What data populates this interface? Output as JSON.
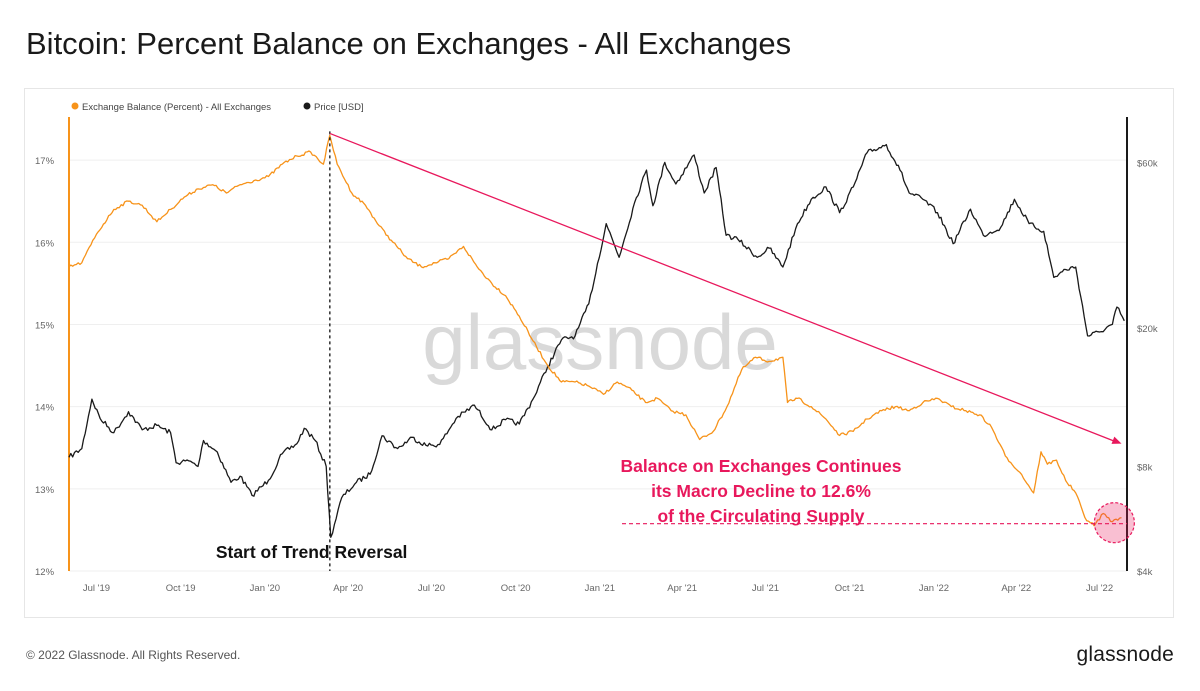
{
  "page": {
    "title": "Bitcoin: Percent Balance on Exchanges - All Exchanges"
  },
  "footer": {
    "copyright": "© 2022 Glassnode. All Rights Reserved.",
    "logo": "glassnode"
  },
  "watermark": "glassnode",
  "colors": {
    "balance": "#f7931a",
    "price": "#1a1a1a",
    "trend": "#e8185c",
    "annotation": "#e8185c"
  },
  "chart_data": {
    "type": "line",
    "title": "Bitcoin: Percent Balance on Exchanges - All Exchanges",
    "legend": {
      "placement": "top-left",
      "entries": [
        "Exchange Balance (Percent) - All Exchanges",
        "Price [USD]"
      ]
    },
    "x_ticks": [
      "Jul '19",
      "Oct '19",
      "Jan '20",
      "Apr '20",
      "Jul '20",
      "Oct '20",
      "Jan '21",
      "Apr '21",
      "Jul '21",
      "Oct '21",
      "Jan '22",
      "Apr '22",
      "Jul '22"
    ],
    "x_range": [
      "2019-06-01",
      "2022-07-31"
    ],
    "y_left": {
      "ticks": [
        "12%",
        "13%",
        "14%",
        "15%",
        "16%",
        "17%"
      ],
      "range": [
        12,
        17.5
      ],
      "unit": "percent"
    },
    "y_right": {
      "ticks": [
        "$4k",
        "$8k",
        "$20k",
        "$60k"
      ],
      "scale": "log",
      "range": [
        4000,
        80000
      ],
      "unit": "USD"
    },
    "grid": {
      "horizontal": true,
      "vertical": false
    },
    "series": [
      {
        "name": "Exchange Balance (Percent) - All Exchanges",
        "axis": "left",
        "points": [
          [
            "2019-06-01",
            15.7
          ],
          [
            "2019-06-15",
            15.75
          ],
          [
            "2019-07-01",
            16.1
          ],
          [
            "2019-07-20",
            16.4
          ],
          [
            "2019-08-05",
            16.5
          ],
          [
            "2019-08-20",
            16.45
          ],
          [
            "2019-09-05",
            16.25
          ],
          [
            "2019-09-20",
            16.4
          ],
          [
            "2019-10-05",
            16.55
          ],
          [
            "2019-10-20",
            16.65
          ],
          [
            "2019-11-05",
            16.7
          ],
          [
            "2019-11-20",
            16.6
          ],
          [
            "2019-12-05",
            16.7
          ],
          [
            "2019-12-20",
            16.75
          ],
          [
            "2020-01-05",
            16.8
          ],
          [
            "2020-01-20",
            16.95
          ],
          [
            "2020-02-05",
            17.05
          ],
          [
            "2020-02-20",
            17.1
          ],
          [
            "2020-03-05",
            16.95
          ],
          [
            "2020-03-12",
            17.3
          ],
          [
            "2020-03-20",
            16.95
          ],
          [
            "2020-04-05",
            16.6
          ],
          [
            "2020-04-20",
            16.45
          ],
          [
            "2020-05-05",
            16.2
          ],
          [
            "2020-05-20",
            16.0
          ],
          [
            "2020-06-05",
            15.8
          ],
          [
            "2020-06-20",
            15.7
          ],
          [
            "2020-07-05",
            15.75
          ],
          [
            "2020-07-20",
            15.8
          ],
          [
            "2020-08-05",
            15.95
          ],
          [
            "2020-08-20",
            15.7
          ],
          [
            "2020-09-05",
            15.5
          ],
          [
            "2020-09-20",
            15.35
          ],
          [
            "2020-10-05",
            15.1
          ],
          [
            "2020-10-20",
            14.8
          ],
          [
            "2020-11-05",
            14.5
          ],
          [
            "2020-11-20",
            14.3
          ],
          [
            "2020-12-05",
            14.3
          ],
          [
            "2020-12-20",
            14.25
          ],
          [
            "2021-01-05",
            14.15
          ],
          [
            "2021-01-20",
            14.3
          ],
          [
            "2021-02-05",
            14.2
          ],
          [
            "2021-02-20",
            14.05
          ],
          [
            "2021-03-05",
            14.1
          ],
          [
            "2021-03-20",
            13.95
          ],
          [
            "2021-04-05",
            13.9
          ],
          [
            "2021-04-20",
            13.6
          ],
          [
            "2021-05-05",
            13.7
          ],
          [
            "2021-05-20",
            14.0
          ],
          [
            "2021-06-05",
            14.45
          ],
          [
            "2021-06-20",
            14.6
          ],
          [
            "2021-07-05",
            14.55
          ],
          [
            "2021-07-20",
            14.6
          ],
          [
            "2021-07-25",
            14.05
          ],
          [
            "2021-08-05",
            14.1
          ],
          [
            "2021-08-20",
            14.0
          ],
          [
            "2021-09-05",
            13.85
          ],
          [
            "2021-09-20",
            13.65
          ],
          [
            "2021-10-05",
            13.7
          ],
          [
            "2021-10-20",
            13.85
          ],
          [
            "2021-11-05",
            13.95
          ],
          [
            "2021-11-20",
            14.0
          ],
          [
            "2021-12-05",
            13.95
          ],
          [
            "2021-12-20",
            14.05
          ],
          [
            "2022-01-05",
            14.1
          ],
          [
            "2022-01-20",
            14.0
          ],
          [
            "2022-02-05",
            13.95
          ],
          [
            "2022-02-20",
            13.9
          ],
          [
            "2022-03-05",
            13.75
          ],
          [
            "2022-03-20",
            13.4
          ],
          [
            "2022-04-05",
            13.2
          ],
          [
            "2022-04-20",
            12.95
          ],
          [
            "2022-04-28",
            13.45
          ],
          [
            "2022-05-05",
            13.3
          ],
          [
            "2022-05-15",
            13.35
          ],
          [
            "2022-05-25",
            13.1
          ],
          [
            "2022-06-05",
            12.95
          ],
          [
            "2022-06-15",
            12.65
          ],
          [
            "2022-06-25",
            12.55
          ],
          [
            "2022-07-05",
            12.7
          ],
          [
            "2022-07-15",
            12.6
          ],
          [
            "2022-07-25",
            12.65
          ]
        ]
      },
      {
        "name": "Price [USD]",
        "axis": "right",
        "points": [
          [
            "2019-06-01",
            8500
          ],
          [
            "2019-06-15",
            9000
          ],
          [
            "2019-06-26",
            12500
          ],
          [
            "2019-07-05",
            11000
          ],
          [
            "2019-07-20",
            10000
          ],
          [
            "2019-08-05",
            11500
          ],
          [
            "2019-08-20",
            10200
          ],
          [
            "2019-09-05",
            10500
          ],
          [
            "2019-09-20",
            10000
          ],
          [
            "2019-09-26",
            8200
          ],
          [
            "2019-10-10",
            8300
          ],
          [
            "2019-10-20",
            8000
          ],
          [
            "2019-10-26",
            9500
          ],
          [
            "2019-11-10",
            8800
          ],
          [
            "2019-11-25",
            7200
          ],
          [
            "2019-12-05",
            7500
          ],
          [
            "2019-12-18",
            6600
          ],
          [
            "2020-01-05",
            7300
          ],
          [
            "2020-01-20",
            8700
          ],
          [
            "2020-02-05",
            9300
          ],
          [
            "2020-02-13",
            10300
          ],
          [
            "2020-02-25",
            9500
          ],
          [
            "2020-03-08",
            8000
          ],
          [
            "2020-03-13",
            5000
          ],
          [
            "2020-03-25",
            6500
          ],
          [
            "2020-04-10",
            7200
          ],
          [
            "2020-04-25",
            7600
          ],
          [
            "2020-05-08",
            9800
          ],
          [
            "2020-05-25",
            9000
          ],
          [
            "2020-06-10",
            9700
          ],
          [
            "2020-06-25",
            9200
          ],
          [
            "2020-07-10",
            9250
          ],
          [
            "2020-07-28",
            11000
          ],
          [
            "2020-08-17",
            12000
          ],
          [
            "2020-09-05",
            10200
          ],
          [
            "2020-09-20",
            10900
          ],
          [
            "2020-10-05",
            10600
          ],
          [
            "2020-10-20",
            12500
          ],
          [
            "2020-11-05",
            15500
          ],
          [
            "2020-11-20",
            18500
          ],
          [
            "2020-12-05",
            19000
          ],
          [
            "2020-12-20",
            23500
          ],
          [
            "2021-01-08",
            40000
          ],
          [
            "2021-01-22",
            32000
          ],
          [
            "2021-02-08",
            46000
          ],
          [
            "2021-02-21",
            57000
          ],
          [
            "2021-02-28",
            45000
          ],
          [
            "2021-03-13",
            60000
          ],
          [
            "2021-03-25",
            52000
          ],
          [
            "2021-04-14",
            63000
          ],
          [
            "2021-04-25",
            49000
          ],
          [
            "2021-05-08",
            58000
          ],
          [
            "2021-05-19",
            37000
          ],
          [
            "2021-06-01",
            36000
          ],
          [
            "2021-06-22",
            32000
          ],
          [
            "2021-07-05",
            34000
          ],
          [
            "2021-07-20",
            30000
          ],
          [
            "2021-08-05",
            40000
          ],
          [
            "2021-08-20",
            47000
          ],
          [
            "2021-09-05",
            51000
          ],
          [
            "2021-09-20",
            43000
          ],
          [
            "2021-10-05",
            51000
          ],
          [
            "2021-10-20",
            64000
          ],
          [
            "2021-11-10",
            67500
          ],
          [
            "2021-11-25",
            57000
          ],
          [
            "2021-12-05",
            49000
          ],
          [
            "2021-12-20",
            47000
          ],
          [
            "2022-01-05",
            43000
          ],
          [
            "2022-01-22",
            35000
          ],
          [
            "2022-02-10",
            44000
          ],
          [
            "2022-02-24",
            37000
          ],
          [
            "2022-03-15",
            39000
          ],
          [
            "2022-03-30",
            47000
          ],
          [
            "2022-04-15",
            40000
          ],
          [
            "2022-05-01",
            38000
          ],
          [
            "2022-05-12",
            28000
          ],
          [
            "2022-05-25",
            29500
          ],
          [
            "2022-06-05",
            30000
          ],
          [
            "2022-06-18",
            19000
          ],
          [
            "2022-07-01",
            19500
          ],
          [
            "2022-07-15",
            20500
          ],
          [
            "2022-07-20",
            23000
          ],
          [
            "2022-07-28",
            21000
          ]
        ]
      }
    ],
    "annotations": [
      {
        "kind": "vertical-dashed-line",
        "date": "2020-03-12",
        "label": "Start of Trend Reversal"
      },
      {
        "kind": "trend-arrow",
        "from": [
          "2020-03-12",
          17.3
        ],
        "to": [
          "2022-07-25",
          13.55
        ]
      },
      {
        "kind": "horizontal-dashed-line",
        "from_date": "2021-01-01",
        "to_date": "2022-07-31",
        "value": 12.6
      },
      {
        "kind": "highlight-circle",
        "date": "2022-07-15",
        "value": 12.6
      },
      {
        "kind": "callout",
        "lines": [
          "Balance on Exchanges Continues",
          "its Macro Decline to 12.6%",
          "of the Circulating Supply"
        ]
      }
    ]
  }
}
